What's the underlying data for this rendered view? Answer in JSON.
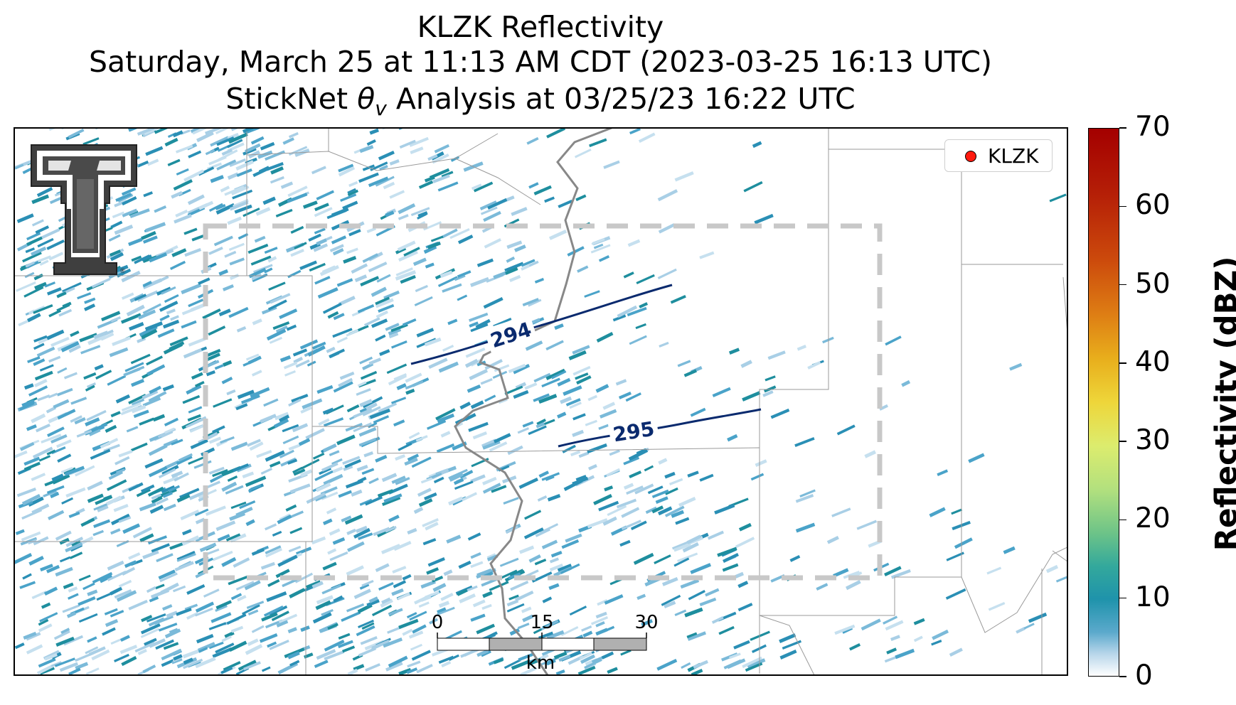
{
  "title": {
    "line1": "KLZK Reflectivity",
    "line2": "Saturday, March 25 at 11:13 AM CDT (2023-03-25 16:13 UTC)",
    "line3_prefix": "StickNet ",
    "line3_symbol": "θ",
    "line3_subscript": "v",
    "line3_suffix": " Analysis at 03/25/23 16:22 UTC"
  },
  "legend": {
    "label": "KLZK",
    "marker_color": "#ff1a0f"
  },
  "colorbar": {
    "label": "Reflectivity (dBZ)",
    "min": 0,
    "max": 70,
    "ticks": [
      "0",
      "10",
      "20",
      "30",
      "40",
      "50",
      "60",
      "70"
    ]
  },
  "contours": [
    {
      "label": "294",
      "color": "#0a2a6e"
    },
    {
      "label": "295",
      "color": "#0a2a6e"
    }
  ],
  "scalebar": {
    "ticks": [
      "0",
      "15",
      "30"
    ],
    "unit": "km"
  },
  "logo": {
    "icon": "double-t-logo-icon"
  },
  "colors": {
    "streak_dark": "#2a8fb5",
    "streak_light": "#a9cfe6",
    "analysis_box": "#c8c8c8",
    "river": "#888888"
  }
}
